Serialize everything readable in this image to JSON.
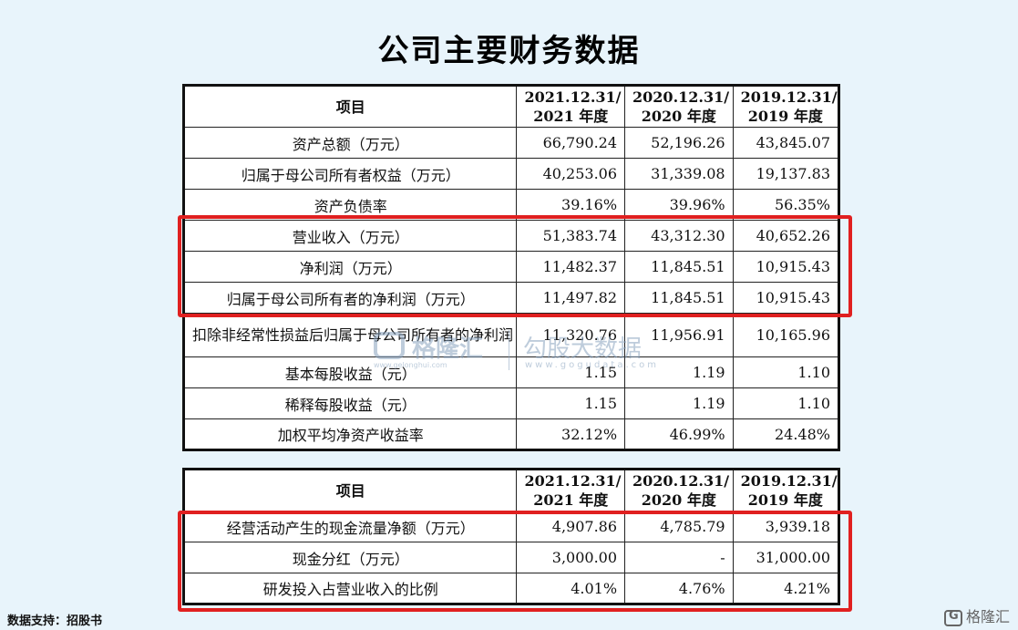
{
  "title": "公司主要财务数据",
  "table1": {
    "headers": [
      "项目",
      "2021.12.31/\n2021 年度",
      "2020.12.31/\n2020 年度",
      "2019.12.31/\n2019 年度"
    ],
    "rows": [
      {
        "label": "资产总额（万元）",
        "v2021": "66,790.24",
        "v2020": "52,196.26",
        "v2019": "43,845.07"
      },
      {
        "label": "归属于母公司所有者权益（万元）",
        "v2021": "40,253.06",
        "v2020": "31,339.08",
        "v2019": "19,137.83"
      },
      {
        "label": "资产负债率",
        "v2021": "39.16%",
        "v2020": "39.96%",
        "v2019": "56.35%"
      },
      {
        "label": "营业收入（万元）",
        "v2021": "51,383.74",
        "v2020": "43,312.30",
        "v2019": "40,652.26"
      },
      {
        "label": "净利润（万元）",
        "v2021": "11,482.37",
        "v2020": "11,845.51",
        "v2019": "10,915.43"
      },
      {
        "label": "归属于母公司所有者的净利润（万元）",
        "v2021": "11,497.82",
        "v2020": "11,845.51",
        "v2019": "10,915.43"
      },
      {
        "label": "扣除非经常性损益后归属于母公司所有者的净利润（万元）",
        "v2021": "11,320.76",
        "v2020": "11,956.91",
        "v2019": "10,165.96"
      },
      {
        "label": "基本每股收益（元）",
        "v2021": "1.15",
        "v2020": "1.19",
        "v2019": "1.10"
      },
      {
        "label": "稀释每股收益（元）",
        "v2021": "1.15",
        "v2020": "1.19",
        "v2019": "1.10"
      },
      {
        "label": "加权平均净资产收益率",
        "v2021": "32.12%",
        "v2020": "46.99%",
        "v2019": "24.48%"
      }
    ]
  },
  "table2": {
    "headers": [
      "项目",
      "2021.12.31/\n2021 年度",
      "2020.12.31/\n2020 年度",
      "2019.12.31/\n2019 年度"
    ],
    "rows": [
      {
        "label": "经营活动产生的现金流量净额（万元）",
        "v2021": "4,907.86",
        "v2020": "4,785.79",
        "v2019": "3,939.18"
      },
      {
        "label": "现金分红（万元）",
        "v2021": "3,000.00",
        "v2020": "-",
        "v2019": "31,000.00"
      },
      {
        "label": "研发投入占营业收入的比例",
        "v2021": "4.01%",
        "v2020": "4.76%",
        "v2019": "4.21%"
      }
    ]
  },
  "watermark": {
    "brand1": "格隆汇",
    "url1": "www.gelonghui.com",
    "brand2": "勾股大数据",
    "url2": "www.gogudata.com"
  },
  "source": "数据支持：招股书",
  "corner_logo": "格隆汇",
  "colors": {
    "highlight": "#e02020",
    "background": "#e8f4fb"
  }
}
